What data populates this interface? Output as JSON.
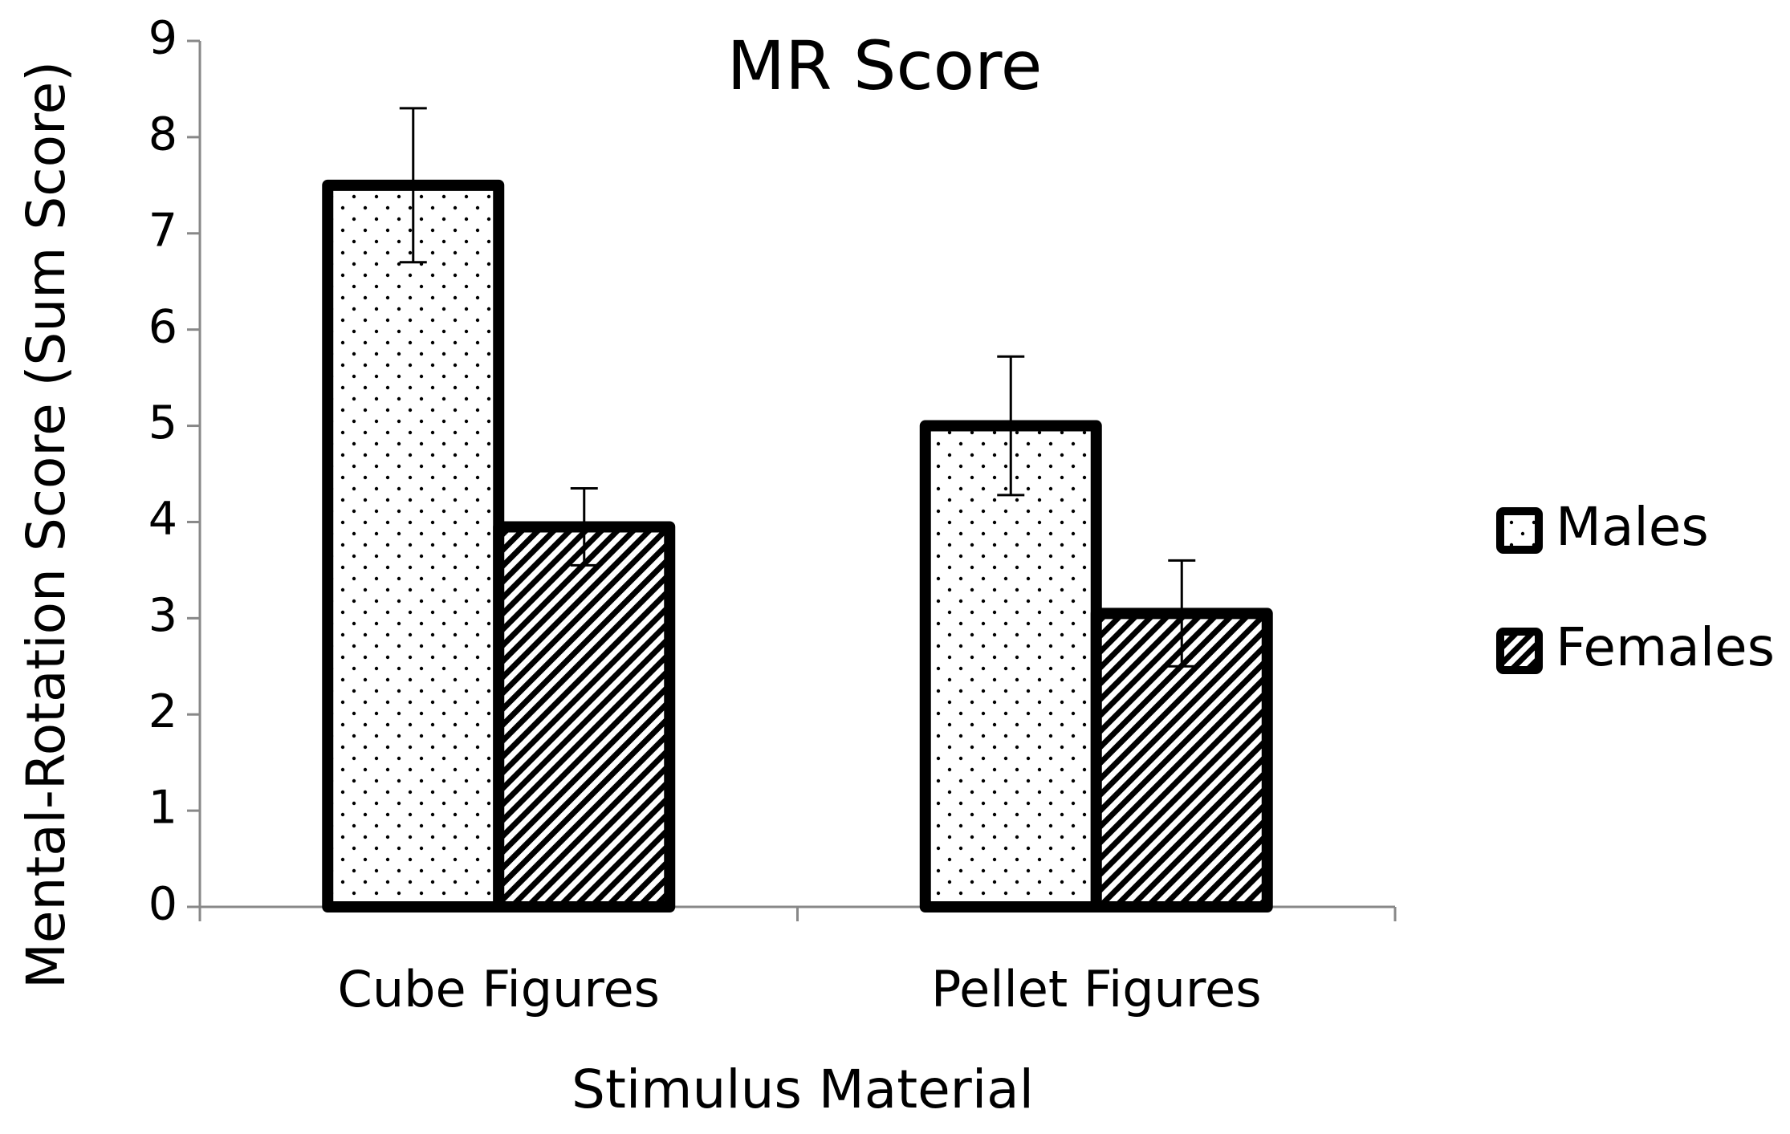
{
  "chart_data": {
    "type": "bar",
    "title": "MR Score",
    "x_label": "Stimulus Material",
    "y_label": "Mental-Rotation Score (Sum Score)",
    "categories": [
      "Cube Figures",
      "Pellet Figures"
    ],
    "series": [
      {
        "name": "Males",
        "color": "#000000",
        "pattern": "dots",
        "values": [
          7.5,
          5.0
        ],
        "errors": [
          0.8,
          0.72
        ]
      },
      {
        "name": "Females",
        "color": "#000000",
        "pattern": "stripes",
        "values": [
          3.95,
          3.05
        ],
        "errors": [
          0.4,
          0.55
        ]
      }
    ],
    "ylim": [
      0,
      9
    ],
    "yticks": [
      0,
      1,
      2,
      3,
      4,
      5,
      6,
      7,
      8,
      9
    ],
    "grid": false,
    "legend": "right"
  }
}
